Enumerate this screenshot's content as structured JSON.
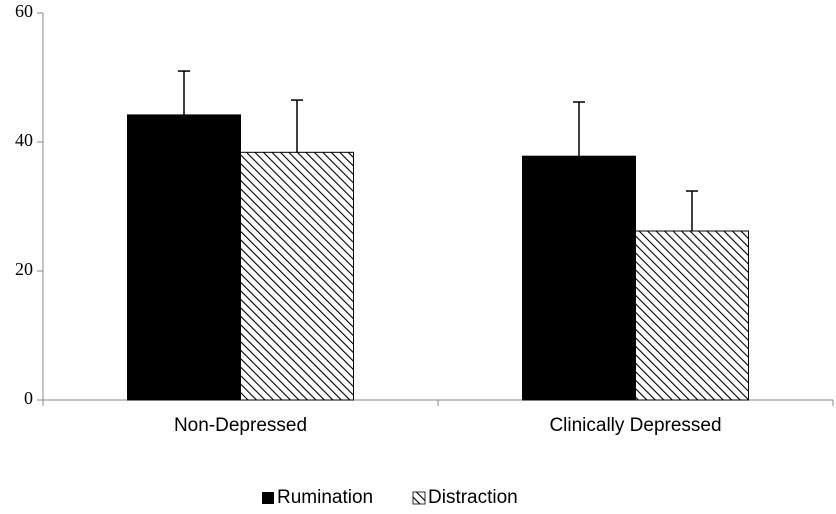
{
  "chart_data": {
    "type": "bar",
    "categories": [
      "Non-Depressed",
      "Clinically Depressed"
    ],
    "series": [
      {
        "name": "Rumination",
        "color": "#000000",
        "fill": "solid",
        "values": [
          44.2,
          37.8
        ],
        "errors": [
          6.8,
          8.4
        ]
      },
      {
        "name": "Distraction",
        "color": "#000000",
        "fill": "hatched",
        "values": [
          38.4,
          26.2
        ],
        "errors": [
          8.1,
          6.2
        ]
      }
    ],
    "ylim": [
      0,
      60
    ],
    "yticks": [
      0,
      20,
      40,
      60
    ],
    "grid": false,
    "legend": "bottom"
  }
}
